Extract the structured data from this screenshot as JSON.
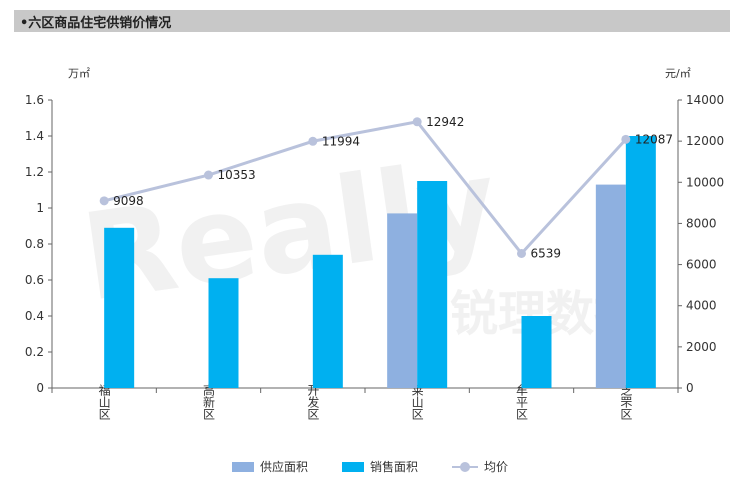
{
  "header": {
    "title": "•六区商品住宅供销价情况"
  },
  "colors": {
    "supply": "#8eb0e0",
    "sales": "#00b0f0",
    "price": "#b9c2dc"
  },
  "chart_data": {
    "type": "bar",
    "categories": [
      "福山区",
      "高新区",
      "开发区",
      "莱山区",
      "牟平区",
      "芝罘区"
    ],
    "series": [
      {
        "name": "供应面积",
        "values": [
          0,
          0,
          0,
          0.97,
          0,
          1.13
        ]
      },
      {
        "name": "销售面积",
        "values": [
          0.89,
          0.61,
          0.74,
          1.15,
          0.4,
          1.4
        ]
      }
    ],
    "line_series": {
      "name": "均价",
      "values": [
        9098,
        10353,
        11994,
        12942,
        6539,
        12087
      ]
    },
    "left_axis": {
      "unit": "万㎡",
      "ylim": [
        0,
        1.6
      ],
      "ticks": [
        "0",
        "0.2",
        "0.4",
        "0.6",
        "0.8",
        "1",
        "1.2",
        "1.4",
        "1.6"
      ]
    },
    "right_axis": {
      "unit": "元/㎡",
      "ylim": [
        0,
        14000
      ],
      "ticks": [
        "0",
        "2000",
        "4000",
        "6000",
        "8000",
        "10000",
        "12000",
        "14000"
      ]
    },
    "legend": {
      "position": "bottom",
      "items": [
        "供应面积",
        "销售面积",
        "均价"
      ]
    },
    "grid": false
  }
}
